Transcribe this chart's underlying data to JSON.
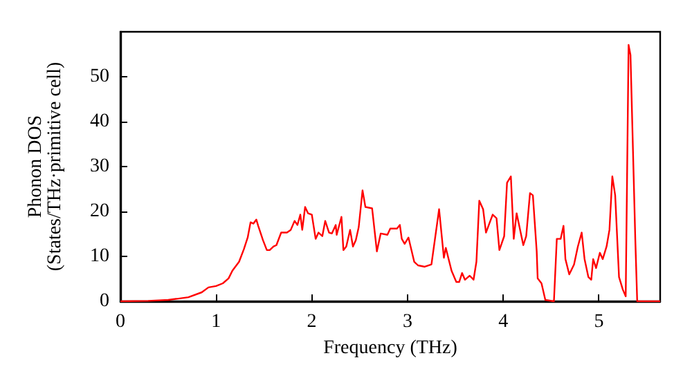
{
  "chart_data": {
    "type": "line",
    "xlabel": "Frequency (THz)",
    "ylabel": "Phonon DOS\n(States/THz·primitive cell)",
    "xlim": [
      0,
      5.64
    ],
    "ylim": [
      0,
      60
    ],
    "xticks": [
      0,
      1,
      2,
      3,
      4,
      5
    ],
    "yticks": [
      0,
      10,
      20,
      30,
      40,
      50
    ],
    "grid": false,
    "marker": "none",
    "line_style": "solid",
    "series": [
      {
        "color": "#ff0000",
        "x": [
          0,
          0.29,
          0.5,
          0.71,
          0.85,
          0.92,
          1.0,
          1.07,
          1.13,
          1.17,
          1.24,
          1.29,
          1.33,
          1.36,
          1.39,
          1.42,
          1.44,
          1.49,
          1.53,
          1.56,
          1.6,
          1.63,
          1.68,
          1.74,
          1.78,
          1.82,
          1.85,
          1.88,
          1.9,
          1.93,
          1.96,
          2.0,
          2.04,
          2.07,
          2.11,
          2.14,
          2.18,
          2.21,
          2.25,
          2.26,
          2.31,
          2.33,
          2.36,
          2.4,
          2.43,
          2.46,
          2.49,
          2.53,
          2.56,
          2.63,
          2.68,
          2.72,
          2.79,
          2.82,
          2.89,
          2.92,
          2.94,
          2.97,
          3.01,
          3.07,
          3.11,
          3.18,
          3.25,
          3.33,
          3.38,
          3.4,
          3.46,
          3.51,
          3.54,
          3.57,
          3.6,
          3.65,
          3.69,
          3.72,
          3.75,
          3.79,
          3.82,
          3.86,
          3.89,
          3.93,
          3.96,
          4.01,
          4.04,
          4.08,
          4.11,
          4.14,
          4.21,
          4.24,
          4.28,
          4.31,
          4.35,
          4.36,
          4.4,
          4.44,
          4.53,
          4.56,
          4.6,
          4.63,
          4.65,
          4.69,
          4.74,
          4.78,
          4.82,
          4.85,
          4.89,
          4.92,
          4.94,
          4.97,
          5.01,
          5.04,
          5.08,
          5.11,
          5.14,
          5.17,
          5.21,
          5.25,
          5.28,
          5.31,
          5.33,
          5.38,
          5.4,
          5.64
        ],
        "values": [
          0,
          0.1,
          0.3,
          0.9,
          2.0,
          3.1,
          3.4,
          4.0,
          5.1,
          6.8,
          8.8,
          11.6,
          14.2,
          17.6,
          17.3,
          18.2,
          16.8,
          13.6,
          11.4,
          11.4,
          12.2,
          12.5,
          15.3,
          15.3,
          15.9,
          17.9,
          17.0,
          19.3,
          15.9,
          21.0,
          19.6,
          19.3,
          13.9,
          15.3,
          14.5,
          17.9,
          15.3,
          15.1,
          17.0,
          14.8,
          18.8,
          11.4,
          12.2,
          15.9,
          12.2,
          13.6,
          16.5,
          24.7,
          21.0,
          20.7,
          11.1,
          15.1,
          14.8,
          16.2,
          16.2,
          17.0,
          13.9,
          12.8,
          14.2,
          8.8,
          8.0,
          7.7,
          8.2,
          20.5,
          9.7,
          11.9,
          6.8,
          4.3,
          4.3,
          6.3,
          4.8,
          5.7,
          4.8,
          8.8,
          22.4,
          20.5,
          15.3,
          17.6,
          19.3,
          18.5,
          11.4,
          14.5,
          26.4,
          27.8,
          13.9,
          19.6,
          12.5,
          14.5,
          24.1,
          23.6,
          11.1,
          5.1,
          4.0,
          0.3,
          0,
          13.9,
          13.9,
          16.8,
          9.4,
          6.0,
          8.2,
          12.2,
          15.3,
          9.4,
          5.4,
          4.8,
          9.4,
          7.4,
          10.8,
          9.4,
          12.2,
          15.9,
          27.8,
          23.6,
          5.4,
          2.6,
          1.1,
          57.1,
          54.8,
          13.9,
          0,
          0
        ]
      }
    ]
  }
}
